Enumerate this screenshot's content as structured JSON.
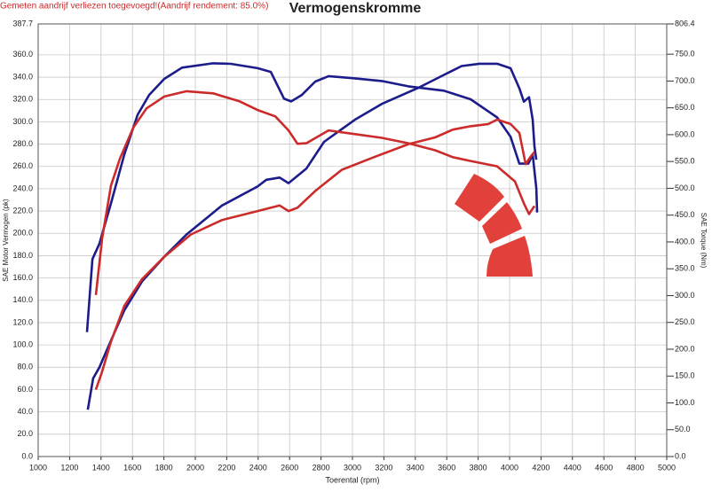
{
  "chart_data": {
    "type": "line",
    "title": "Vermogenskromme",
    "subtitle": "Gemeten aandrijf verliezen toegevoegd!(Aandrijf rendement: 85.0%)",
    "x_label": "Toerental (rpm)",
    "y_label": "SAE Motor Vermogen (pk)",
    "y2_label": "SAE Torque (Nm)",
    "grid": true,
    "xlim": [
      1000,
      5000
    ],
    "xticks": [
      1000,
      1200,
      1400,
      1600,
      1800,
      2000,
      2200,
      2400,
      2600,
      2800,
      3000,
      3200,
      3400,
      3600,
      3800,
      4000,
      4200,
      4400,
      4600,
      4800,
      5000
    ],
    "ylim": [
      0,
      387.7
    ],
    "yticks": [
      {
        "value": 0,
        "label": "0.0"
      },
      {
        "value": 20,
        "label": "20.0"
      },
      {
        "value": 40,
        "label": "40.0"
      },
      {
        "value": 60,
        "label": "60.0"
      },
      {
        "value": 80,
        "label": "80.0"
      },
      {
        "value": 100,
        "label": "100.0"
      },
      {
        "value": 120,
        "label": "120.0"
      },
      {
        "value": 140,
        "label": "140.0"
      },
      {
        "value": 160,
        "label": "160.0"
      },
      {
        "value": 180,
        "label": "180.0"
      },
      {
        "value": 200,
        "label": "200.0"
      },
      {
        "value": 220,
        "label": "220.0"
      },
      {
        "value": 240,
        "label": "240.0"
      },
      {
        "value": 260,
        "label": "260.0"
      },
      {
        "value": 280,
        "label": "280.0"
      },
      {
        "value": 300,
        "label": "300.0"
      },
      {
        "value": 320,
        "label": "320.0"
      },
      {
        "value": 340,
        "label": "340.0"
      },
      {
        "value": 360,
        "label": "360.0"
      },
      {
        "value": 387.7,
        "label": "387.7"
      }
    ],
    "y2lim": [
      0,
      806.4
    ],
    "y2ticks": [
      {
        "value": 0,
        "label": "0.0"
      },
      {
        "value": 50,
        "label": "50.0"
      },
      {
        "value": 100,
        "label": "100.0"
      },
      {
        "value": 150,
        "label": "150.0"
      },
      {
        "value": 200,
        "label": "200.0"
      },
      {
        "value": 250,
        "label": "250.0"
      },
      {
        "value": 300,
        "label": "300.0"
      },
      {
        "value": 350,
        "label": "350.0"
      },
      {
        "value": 400,
        "label": "400.0"
      },
      {
        "value": 450,
        "label": "450.0"
      },
      {
        "value": 500,
        "label": "500.0"
      },
      {
        "value": 550,
        "label": "550.0"
      },
      {
        "value": 600,
        "label": "600.0"
      },
      {
        "value": 650,
        "label": "650.0"
      },
      {
        "value": 700,
        "label": "700.0"
      },
      {
        "value": 750,
        "label": "750.0"
      },
      {
        "value": 806.4,
        "label": "806.4"
      }
    ],
    "series": [
      {
        "color": "#1c1c8a",
        "axis": "y2",
        "x": [
          1311,
          1345,
          1390,
          1463,
          1548,
          1633,
          1706,
          1802,
          1915,
          2113,
          2226,
          2396,
          2480,
          2565,
          2610,
          2678,
          2763,
          2848,
          3017,
          3187,
          3356,
          3582,
          3752,
          3921,
          4006,
          4062,
          4119,
          4147,
          4170,
          4175
        ],
        "values": [
          232,
          368,
          397,
          472,
          563,
          637,
          674,
          704,
          725,
          733,
          732,
          724,
          717,
          667,
          662,
          674,
          699,
          709,
          705,
          700,
          690,
          682,
          666,
          632,
          596,
          546,
          546,
          563,
          500,
          455
        ]
      },
      {
        "color": "#1c1c8a",
        "x": [
          1316,
          1350,
          1390,
          1463,
          1548,
          1661,
          1802,
          1944,
          2170,
          2396,
          2452,
          2537,
          2593,
          2706,
          2819,
          3017,
          3187,
          3413,
          3582,
          3695,
          3808,
          3921,
          4006,
          4062,
          4091,
          4124,
          4147,
          4158,
          4170
        ],
        "values": [
          42,
          70,
          80,
          104,
          131,
          157,
          179,
          199,
          225,
          242,
          248,
          250,
          245,
          258,
          282,
          302,
          316,
          330,
          342,
          350,
          352,
          352,
          348,
          330,
          318,
          322,
          302,
          278,
          266
        ]
      },
      {
        "color": "#cc2b2b",
        "axis": "y2",
        "x": [
          1367,
          1407,
          1463,
          1520,
          1605,
          1689,
          1802,
          1944,
          2113,
          2283,
          2396,
          2509,
          2593,
          2650,
          2706,
          2848,
          3017,
          3187,
          3356,
          3526,
          3639,
          3752,
          3921,
          4034,
          4091,
          4124,
          4158
        ],
        "values": [
          301,
          406,
          505,
          555,
          613,
          649,
          671,
          681,
          677,
          662,
          646,
          634,
          608,
          583,
          584,
          608,
          601,
          594,
          584,
          571,
          558,
          551,
          541,
          513,
          472,
          452,
          467
        ]
      },
      {
        "color": "#cc2b2b",
        "x": [
          1367,
          1407,
          1463,
          1548,
          1661,
          1802,
          1972,
          2170,
          2396,
          2537,
          2593,
          2650,
          2763,
          2933,
          3131,
          3356,
          3526,
          3639,
          3752,
          3865,
          3921,
          4006,
          4062,
          4102,
          4130,
          4158
        ],
        "values": [
          60,
          76,
          103,
          135,
          159,
          179,
          199,
          212,
          220,
          225,
          220,
          223,
          238,
          257,
          268,
          280,
          286,
          293,
          296,
          298,
          302,
          298,
          290,
          262,
          268,
          273
        ]
      }
    ]
  }
}
